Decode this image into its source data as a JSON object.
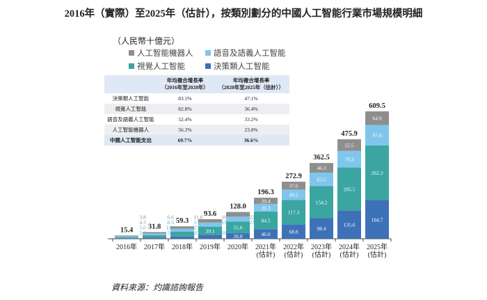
{
  "title": "2016年（實際）至2025年（估計），按類別劃分的中國人工智能行業市場規模明細",
  "unit": "（人民幣十億元）",
  "source": "資料來源：灼識諮詢報告",
  "table": {
    "headers": [
      "",
      "年均複合增長率\n（2016年至2020年）",
      "年均複合增長率\n（2020年至2025年（估計））"
    ],
    "rows": [
      [
        "決策類人工智能",
        "83.5%",
        "47.1%"
      ],
      [
        "視覺人工智能",
        "82.8%",
        "36.4%"
      ],
      [
        "語音及語義人工智能",
        "52.4%",
        "33.2%"
      ],
      [
        "人工智能機器人",
        "56.2%",
        "23.8%"
      ],
      [
        "中國人工智能支出",
        "69.7%",
        "36.6%"
      ]
    ]
  },
  "chart_data": {
    "type": "bar",
    "stacked": true,
    "categories": [
      "2016年",
      "2017年",
      "2018年",
      "2019年",
      "2020年",
      "2021年\n(估計)",
      "2022年\n(估計)",
      "2023年\n(估計)",
      "2024年\n(估計)",
      "2025年\n(估計)"
    ],
    "series": [
      {
        "name": "決策類人工智能",
        "color": "#3d72b8",
        "values": [
          2.4,
          5.5,
          10.9,
          18.8,
          26.8,
          46.0,
          68.8,
          98.4,
          135.6,
          184.7
        ]
      },
      {
        "name": "視覺人工智能",
        "color": "#3ba5a1",
        "values": [
          5.0,
          11.4,
          23.5,
          39.1,
          55.6,
          84.5,
          117.3,
          154.2,
          205.5,
          262.3
        ]
      },
      {
        "name": "語音及語義人工智能",
        "color": "#80c6ec",
        "values": [
          4.3,
          8.3,
          13.3,
          19.4,
          23.3,
          36.3,
          49.2,
          63.5,
          79.3,
          97.6
        ]
      },
      {
        "name": "人工智能機器人",
        "color": "#8e8e8e",
        "values": [
          3.8,
          6.6,
          11.6,
          16.3,
          22.3,
          29.4,
          37.6,
          46.3,
          55.5,
          64.9
        ]
      }
    ],
    "totals": [
      15.4,
      31.8,
      59.3,
      93.6,
      128.0,
      196.3,
      272.9,
      362.5,
      475.9,
      609.5
    ],
    "legend_position": "top-left",
    "grid": false
  }
}
